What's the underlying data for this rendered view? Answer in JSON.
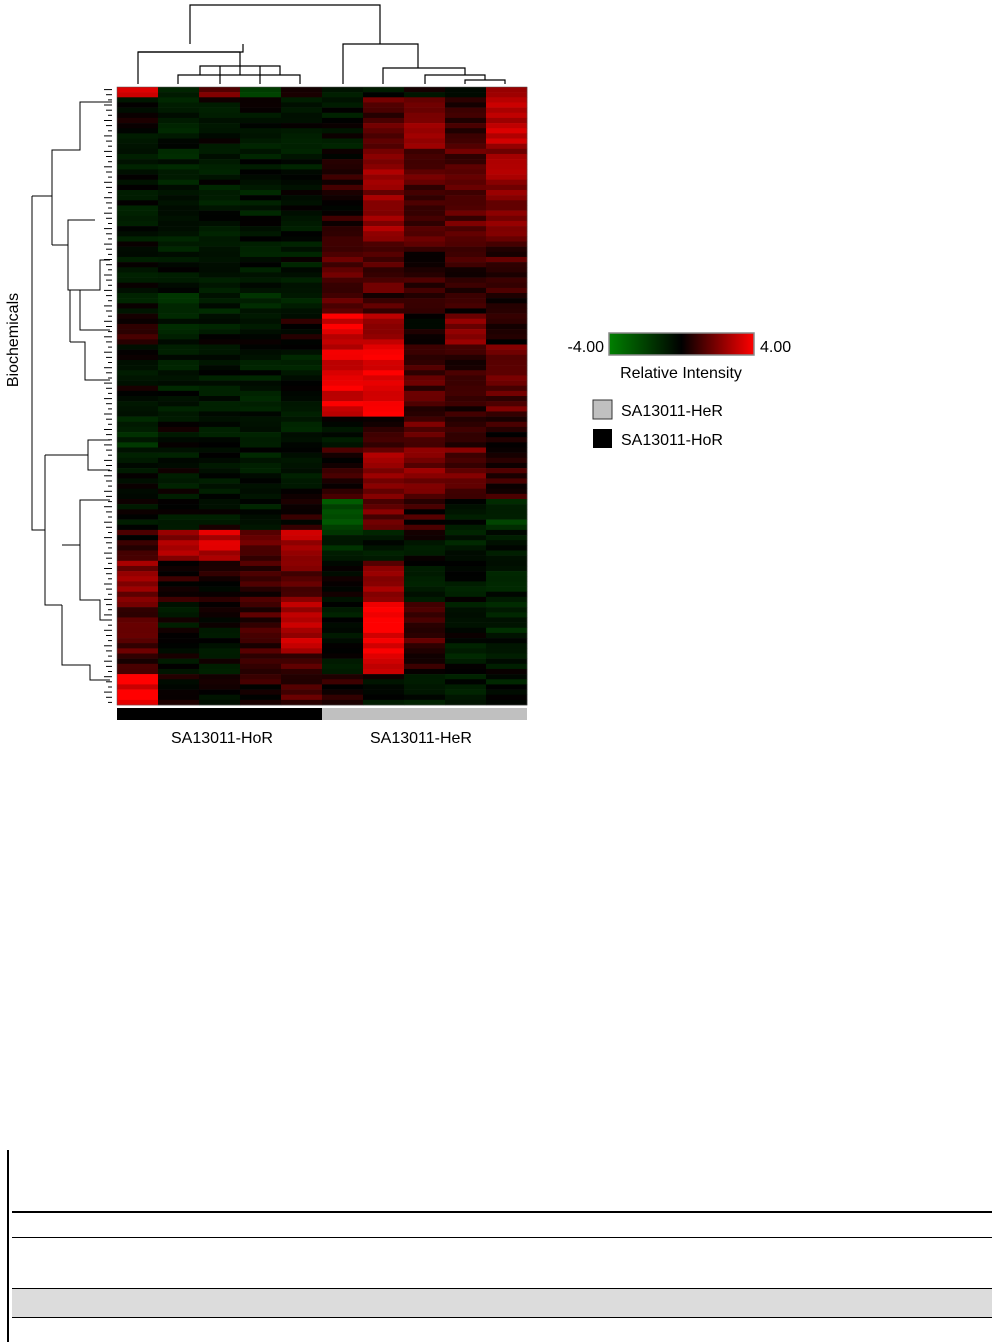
{
  "chart_data": {
    "type": "heatmap",
    "ylabel": "Biochemicals",
    "colorbar": {
      "min_label": "-4.00",
      "max_label": "4.00",
      "min": -4.0,
      "max": 4.0,
      "title": "Relative Intensity",
      "colors": [
        "#008000",
        "#000000",
        "#ff0000"
      ]
    },
    "legend": [
      {
        "label": "SA13011-HeR",
        "color": "#c0c0c0"
      },
      {
        "label": "SA13011-HoR",
        "color": "#000000"
      }
    ],
    "groups": [
      {
        "label": "SA13011-HoR",
        "color": "#000000",
        "columns": 5
      },
      {
        "label": "SA13011-HeR",
        "color": "#c0c0c0",
        "columns": 5
      }
    ],
    "n_rows": 120,
    "n_columns": 10,
    "row_blocks": [
      {
        "rows": [
          0,
          2
        ],
        "values": [
          3.5,
          -1.2,
          1.8,
          -1.5,
          0.4,
          -0.6,
          -0.3,
          -0.2,
          -0.4,
          2.5
        ]
      },
      {
        "rows": [
          2,
          12
        ],
        "values": [
          -0.2,
          -0.6,
          -0.4,
          -0.5,
          -0.4,
          -0.5,
          1.2,
          2.0,
          0.8,
          2.8
        ]
      },
      {
        "rows": [
          12,
          30
        ],
        "values": [
          -0.5,
          -0.7,
          -0.6,
          -0.6,
          -0.5,
          0.4,
          2.2,
          1.2,
          1.4,
          2.2
        ]
      },
      {
        "rows": [
          30,
          40
        ],
        "values": [
          -0.4,
          -0.6,
          -0.5,
          -0.6,
          -0.5,
          1.2,
          1.4,
          0.8,
          0.8,
          0.9
        ]
      },
      {
        "rows": [
          40,
          44
        ],
        "values": [
          -0.5,
          -1.6,
          -0.9,
          -1.0,
          -0.6,
          1.3,
          1.0,
          0.6,
          0.6,
          0.7
        ]
      },
      {
        "rows": [
          44,
          50
        ],
        "values": [
          0.5,
          -0.7,
          -0.5,
          -0.4,
          0.3,
          3.5,
          2.8,
          0.4,
          2.0,
          0.2
        ]
      },
      {
        "rows": [
          50,
          64
        ],
        "values": [
          -0.3,
          -0.6,
          -0.5,
          -0.7,
          -0.6,
          3.4,
          3.8,
          1.2,
          0.6,
          1.4
        ]
      },
      {
        "rows": [
          64,
          70
        ],
        "values": [
          -1.2,
          -0.3,
          -0.6,
          -0.8,
          -0.6,
          -0.5,
          0.6,
          1.4,
          0.5,
          0.5
        ]
      },
      {
        "rows": [
          70,
          80
        ],
        "values": [
          -0.5,
          -0.4,
          -0.4,
          -0.6,
          -0.4,
          0.6,
          2.2,
          1.8,
          1.5,
          0.6
        ]
      },
      {
        "rows": [
          80,
          86
        ],
        "values": [
          -0.3,
          -0.4,
          -0.3,
          -0.5,
          0.5,
          -2.5,
          1.5,
          0.7,
          -0.6,
          -1.5
        ]
      },
      {
        "rows": [
          86,
          92
        ],
        "values": [
          0.5,
          2.5,
          3.0,
          1.2,
          2.8,
          -1.0,
          -0.5,
          -0.3,
          -0.8,
          -0.6
        ]
      },
      {
        "rows": [
          92,
          100
        ],
        "values": [
          2.0,
          0.6,
          0.4,
          0.8,
          1.5,
          -0.2,
          2.0,
          -0.5,
          -0.6,
          -0.8
        ]
      },
      {
        "rows": [
          100,
          110
        ],
        "values": [
          1.2,
          -0.3,
          -0.2,
          0.9,
          2.8,
          -0.4,
          3.8,
          1.0,
          -0.5,
          -0.8
        ]
      },
      {
        "rows": [
          110,
          114
        ],
        "values": [
          1.0,
          -0.2,
          -0.4,
          1.0,
          1.2,
          -0.4,
          3.6,
          0.4,
          -0.6,
          -0.5
        ]
      },
      {
        "rows": [
          114,
          120
        ],
        "values": [
          3.8,
          0.2,
          -0.3,
          0.6,
          1.2,
          0.5,
          -0.2,
          -0.4,
          -0.5,
          -0.6
        ]
      }
    ]
  }
}
